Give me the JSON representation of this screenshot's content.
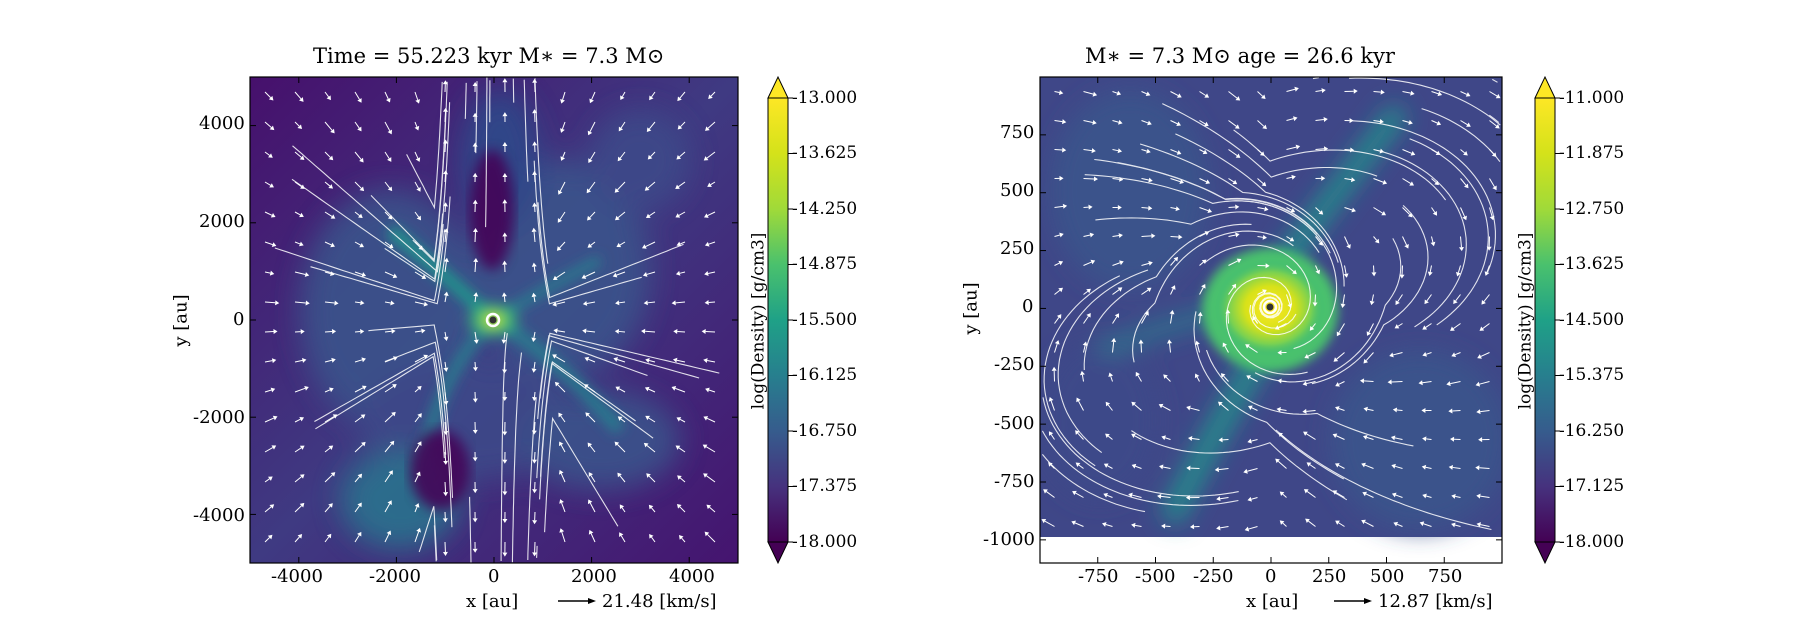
{
  "chart_data": [
    {
      "type": "heatmap",
      "title": "Time = 55.223 kyr    M∗ = 7.3 M⊙",
      "xlabel": "x [au]",
      "ylabel": "y [au]",
      "xlim": [
        -5000,
        5000
      ],
      "ylim": [
        -5000,
        5000
      ],
      "xticks": [
        "-4000",
        "-2000",
        "0",
        "2000",
        "4000"
      ],
      "xtick_values": [
        -4000,
        -2000,
        0,
        2000,
        4000
      ],
      "yticks": [
        "4000",
        "2000",
        "0",
        "-2000",
        "-4000"
      ],
      "ytick_values": [
        4000,
        2000,
        0,
        -2000,
        -4000
      ],
      "velocity_scale": "21.48 [km/s]",
      "colorbar": {
        "label": "log(Density) [g/cm3]",
        "ticks": [
          "-13.000",
          "-13.625",
          "-14.250",
          "-14.875",
          "-15.500",
          "-16.125",
          "-16.750",
          "-17.375",
          "-18.000"
        ],
        "range": [
          -18.0,
          -13.0
        ],
        "colormap": "viridis"
      },
      "overlay": "velocity streamlines and arrows",
      "sink_position": [
        0,
        0
      ]
    },
    {
      "type": "heatmap",
      "title": "M∗ = 7.3 M⊙          age = 26.6 kyr",
      "xlabel": "x [au]",
      "ylabel": "y [au]",
      "xlim": [
        -1000,
        1000
      ],
      "ylim": [
        -1100,
        1000
      ],
      "xticks": [
        "-750",
        "-500",
        "-250",
        "0",
        "250",
        "500",
        "750"
      ],
      "xtick_values": [
        -750,
        -500,
        -250,
        0,
        250,
        500,
        750
      ],
      "yticks": [
        "750",
        "500",
        "250",
        "0",
        "-250",
        "-500",
        "-750",
        "-1000"
      ],
      "ytick_values": [
        750,
        500,
        250,
        0,
        -250,
        -500,
        -750,
        -1000
      ],
      "velocity_scale": "12.87 [km/s]",
      "colorbar": {
        "label": "log(Density) [g/cm3]",
        "ticks": [
          "-11.000",
          "-11.875",
          "-12.750",
          "-13.625",
          "-14.500",
          "-15.375",
          "-16.250",
          "-17.125",
          "-18.000"
        ],
        "range": [
          -18.0,
          -11.0
        ],
        "colormap": "viridis"
      },
      "overlay": "velocity streamlines and arrows",
      "sink_position": [
        0,
        0
      ]
    }
  ]
}
